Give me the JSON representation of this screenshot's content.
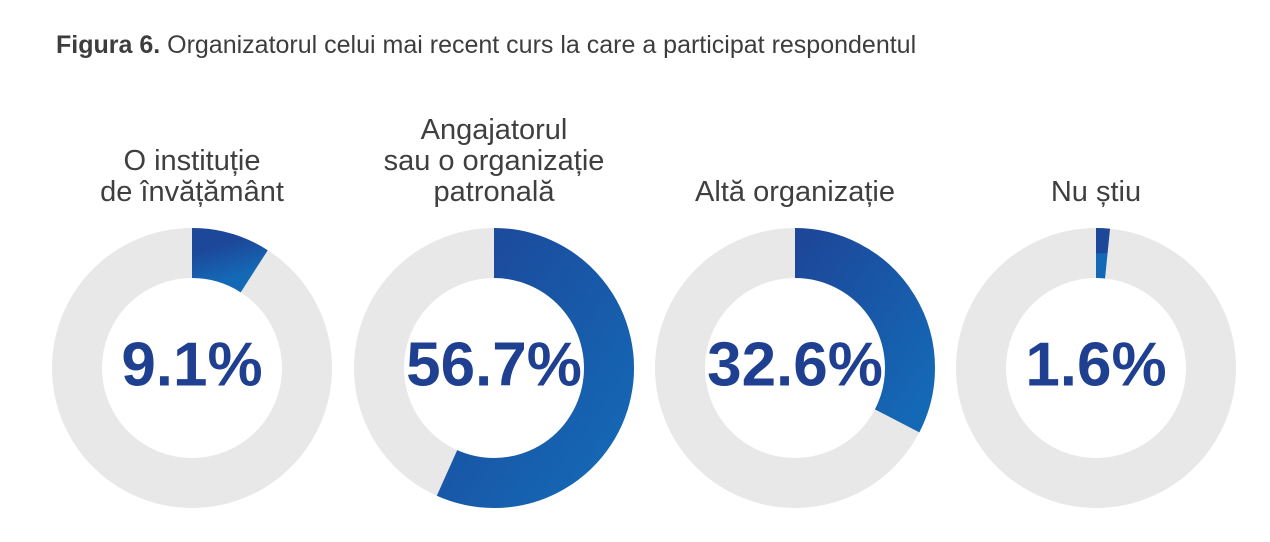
{
  "title": {
    "figure_number": "Figura 6.",
    "text": " Organizatorul celui mai recent curs la care a participat respondentul"
  },
  "colors": {
    "track": "#e8e8e8",
    "arc_start": "#1d4799",
    "arc_end": "#1469b6",
    "value_text": "#1f3f91",
    "label_text": "#3f3f3f"
  },
  "chart_data": [
    {
      "type": "pie",
      "style": "donut",
      "label": "O instituție\nde învățământ",
      "value": 9.1,
      "value_label": "9.1%"
    },
    {
      "type": "pie",
      "style": "donut",
      "label": "Angajatorul\nsau o organizație\npatronală",
      "value": 56.7,
      "value_label": "56.7%"
    },
    {
      "type": "pie",
      "style": "donut",
      "label": "Altă organizație",
      "value": 32.6,
      "value_label": "32.6%"
    },
    {
      "type": "pie",
      "style": "donut",
      "label": "Nu știu",
      "value": 1.6,
      "value_label": "1.6%"
    }
  ]
}
